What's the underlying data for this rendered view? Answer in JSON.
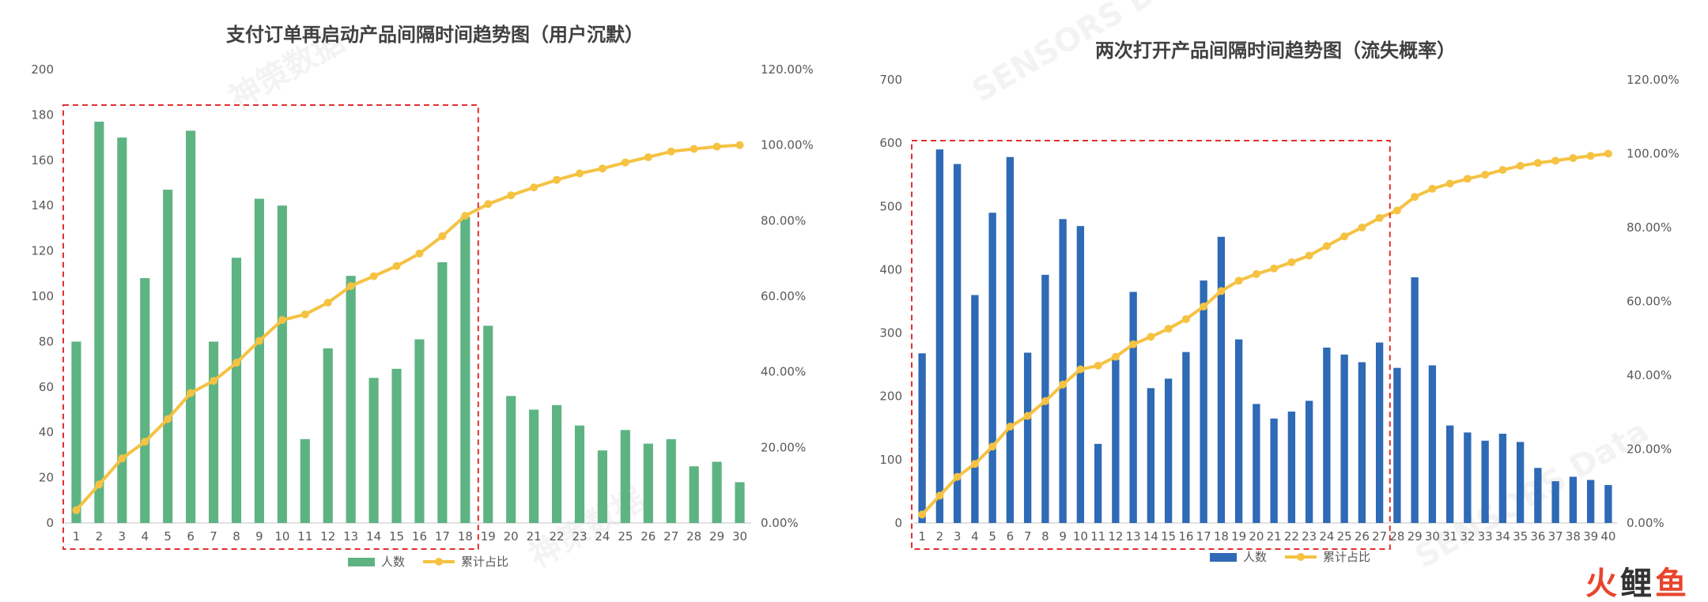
{
  "chart_data": [
    {
      "type": "bar",
      "title": "支付订单再启动产品间隔时间趋势图（用户沉默）",
      "categories": [
        "1",
        "2",
        "3",
        "4",
        "5",
        "6",
        "7",
        "8",
        "9",
        "10",
        "11",
        "12",
        "13",
        "14",
        "15",
        "16",
        "17",
        "18",
        "19",
        "20",
        "21",
        "22",
        "23",
        "24",
        "25",
        "26",
        "27",
        "28",
        "29",
        "30"
      ],
      "series": [
        {
          "name": "人数",
          "type": "bar",
          "axis": "left",
          "color": "#5eb383",
          "values": [
            80,
            177,
            170,
            108,
            147,
            173,
            80,
            117,
            143,
            140,
            37,
            77,
            109,
            64,
            68,
            81,
            115,
            135,
            87,
            56,
            50,
            52,
            43,
            32,
            41,
            35,
            37,
            25,
            27,
            18
          ]
        },
        {
          "name": "累计占比",
          "type": "line",
          "axis": "right",
          "color": "#f5c242",
          "values": [
            3.4,
            10.2,
            17.1,
            21.5,
            27.5,
            34.4,
            37.6,
            42.4,
            48.2,
            53.7,
            55.2,
            58.3,
            62.7,
            65.3,
            68.0,
            71.3,
            75.9,
            81.3,
            84.4,
            86.7,
            88.8,
            90.8,
            92.5,
            93.8,
            95.4,
            96.8,
            98.3,
            99.0,
            99.6,
            100.0
          ]
        }
      ],
      "ylim_left": [
        0,
        200
      ],
      "yticks_left": [
        "0",
        "20",
        "40",
        "60",
        "80",
        "100",
        "120",
        "140",
        "160",
        "180",
        "200"
      ],
      "ylim_right": [
        0,
        120
      ],
      "yticks_right": [
        "0.00%",
        "20.00%",
        "40.00%",
        "60.00%",
        "80.00%",
        "100.00%",
        "120.00%"
      ],
      "highlight_box": {
        "from_category": "1",
        "to_category": "18",
        "color": "#e03030"
      },
      "legend": {
        "position": "bottom",
        "items": [
          "人数",
          "累计占比"
        ]
      },
      "grid": false
    },
    {
      "type": "bar",
      "title": "两次打开产品间隔时间趋势图（流失概率）",
      "categories": [
        "1",
        "2",
        "3",
        "4",
        "5",
        "6",
        "7",
        "8",
        "9",
        "10",
        "11",
        "12",
        "13",
        "14",
        "15",
        "16",
        "17",
        "18",
        "19",
        "20",
        "21",
        "22",
        "23",
        "24",
        "25",
        "26",
        "27",
        "28",
        "29",
        "30",
        "31",
        "32",
        "33",
        "34",
        "35",
        "36",
        "37",
        "38",
        "39",
        "40"
      ],
      "series": [
        {
          "name": "人数",
          "type": "bar",
          "axis": "left",
          "color": "#2e6ab5",
          "values": [
            268,
            590,
            567,
            360,
            490,
            578,
            269,
            392,
            480,
            469,
            125,
            258,
            365,
            213,
            228,
            270,
            383,
            452,
            290,
            188,
            165,
            176,
            193,
            277,
            266,
            254,
            285,
            245,
            388,
            249,
            154,
            143,
            130,
            141,
            128,
            87,
            66,
            73,
            68,
            60
          ]
        },
        {
          "name": "累计占比",
          "type": "line",
          "axis": "right",
          "color": "#f5c242",
          "values": [
            2.3,
            7.4,
            12.5,
            16.0,
            20.7,
            26.1,
            29.0,
            33.0,
            37.5,
            41.6,
            42.6,
            45.0,
            48.4,
            50.4,
            52.6,
            55.2,
            58.6,
            62.8,
            65.6,
            67.4,
            68.9,
            70.6,
            72.4,
            75.0,
            77.6,
            80.0,
            82.6,
            84.6,
            88.3,
            90.5,
            91.9,
            93.2,
            94.3,
            95.6,
            96.7,
            97.5,
            98.1,
            98.8,
            99.4,
            100.0
          ]
        }
      ],
      "ylim_left": [
        0,
        700
      ],
      "yticks_left": [
        "0",
        "100",
        "200",
        "300",
        "400",
        "500",
        "600",
        "700"
      ],
      "ylim_right": [
        0,
        120
      ],
      "yticks_right": [
        "0.00%",
        "20.00%",
        "40.00%",
        "60.00%",
        "80.00%",
        "100.00%",
        "120.00%"
      ],
      "highlight_box": {
        "from_category": "1",
        "to_category": "27",
        "color": "#e03030"
      },
      "legend": {
        "position": "bottom",
        "items": [
          "人数",
          "累计占比"
        ]
      },
      "grid": false
    }
  ],
  "watermark": {
    "text": "神策数据",
    "subtext": "SENSORS Data"
  },
  "logo": {
    "parts": [
      "火",
      "鲤",
      "鱼"
    ],
    "colors": [
      "#e8452c",
      "#333333",
      "#e8452c"
    ]
  }
}
